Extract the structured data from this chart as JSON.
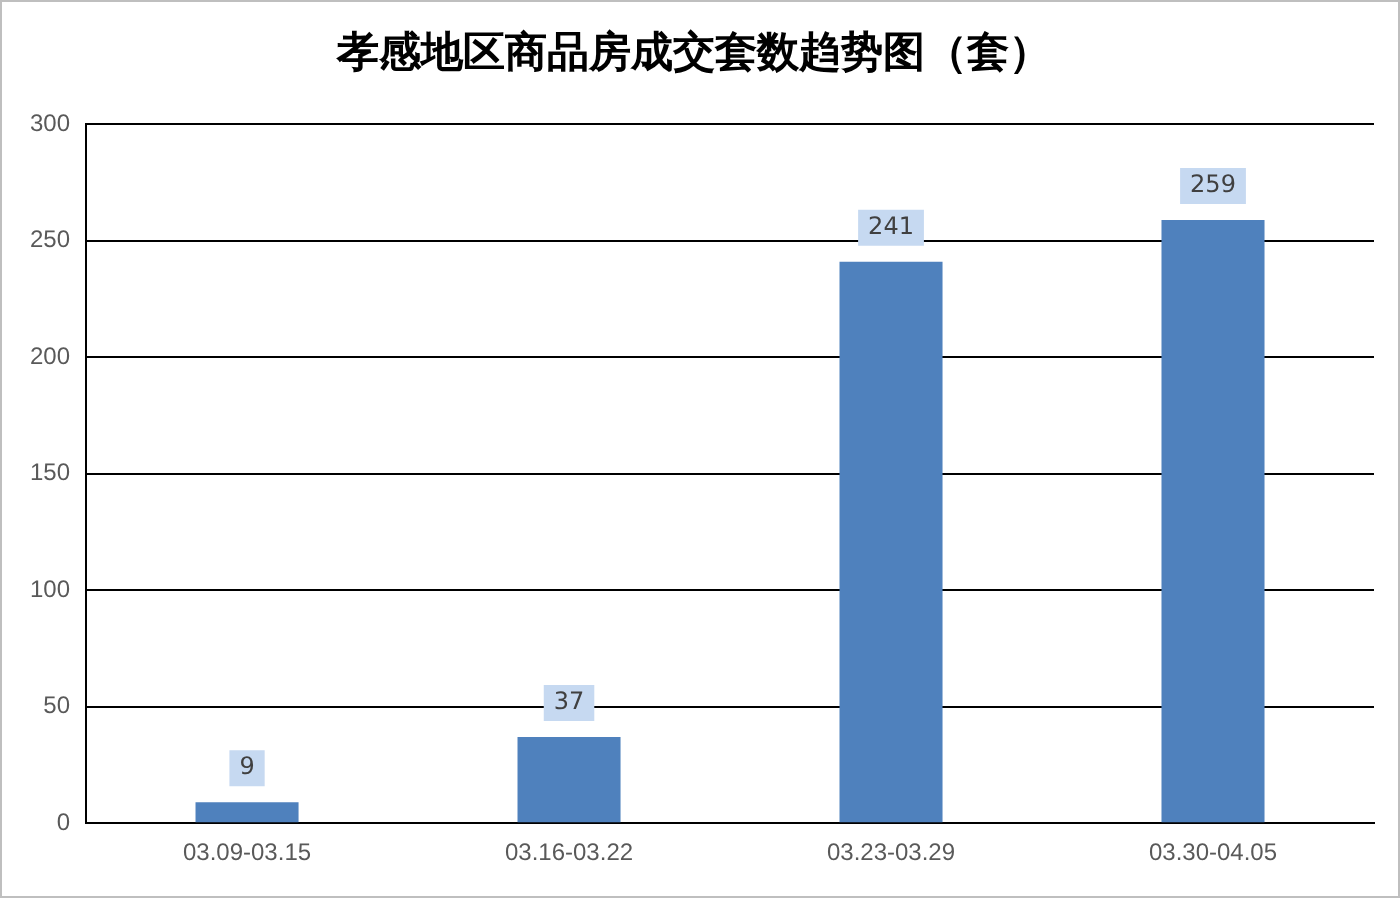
{
  "chart_data": {
    "type": "bar",
    "title": "孝感地区商品房成交套数趋势图（套）",
    "categories": [
      "03.09-03.15",
      "03.16-03.22",
      "03.23-03.29",
      "03.30-04.05"
    ],
    "values": [
      9,
      37,
      241,
      259
    ],
    "color": "#4f81bd",
    "ylim": [
      0,
      300
    ],
    "yticks": [
      0,
      50,
      100,
      150,
      200,
      250,
      300
    ],
    "grid": "y",
    "data_labels": true
  }
}
